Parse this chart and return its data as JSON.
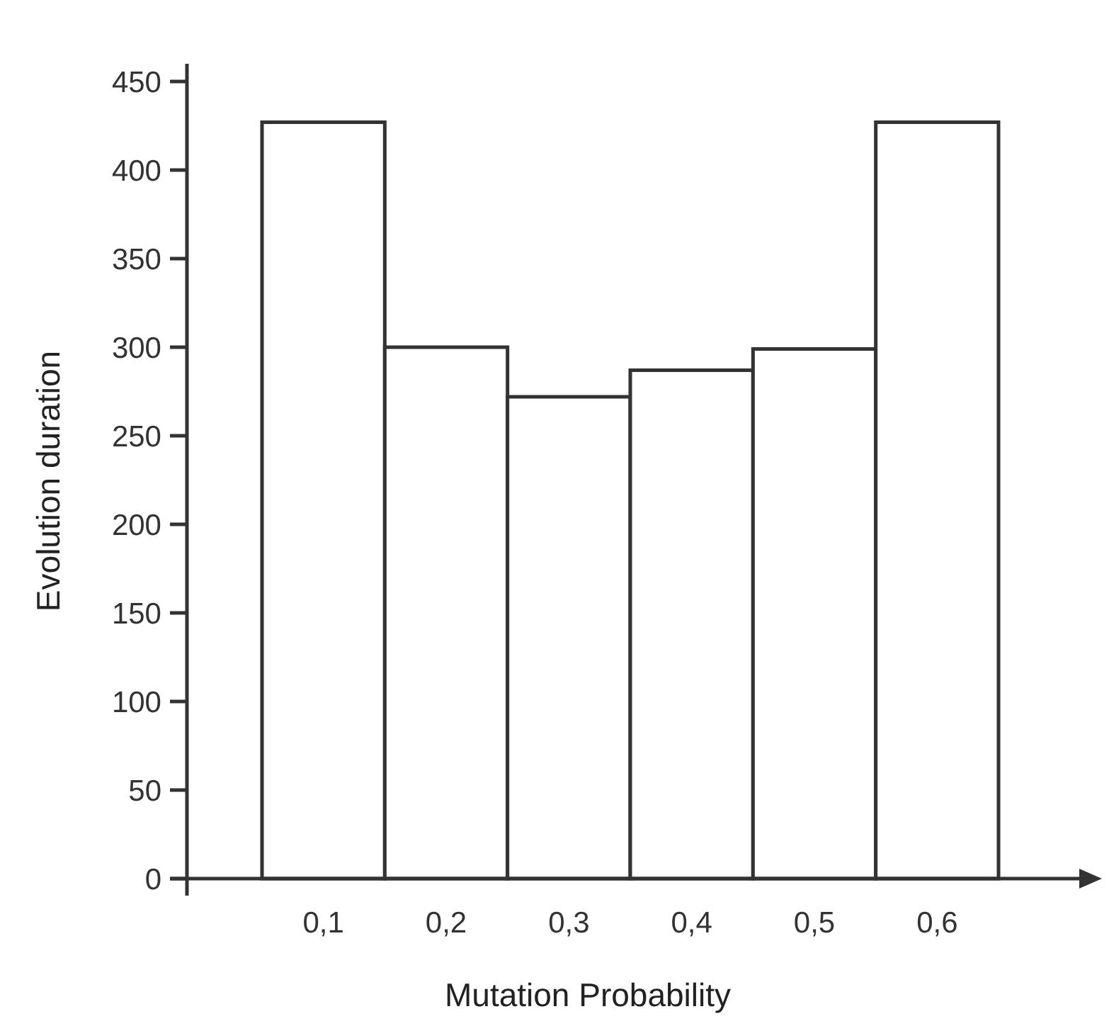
{
  "chart_data": {
    "type": "bar",
    "xlabel": "Mutation Probability",
    "ylabel": "Evolution duration",
    "categories": [
      "0,1",
      "0,2",
      "0,3",
      "0,4",
      "0,5",
      "0,6"
    ],
    "values": [
      427,
      300,
      272,
      287,
      299,
      427
    ],
    "color": "#ffffff",
    "ylim": [
      0,
      460
    ],
    "yticks": [
      0,
      50,
      100,
      150,
      200,
      250,
      300,
      350,
      400,
      450
    ],
    "grid": false
  }
}
